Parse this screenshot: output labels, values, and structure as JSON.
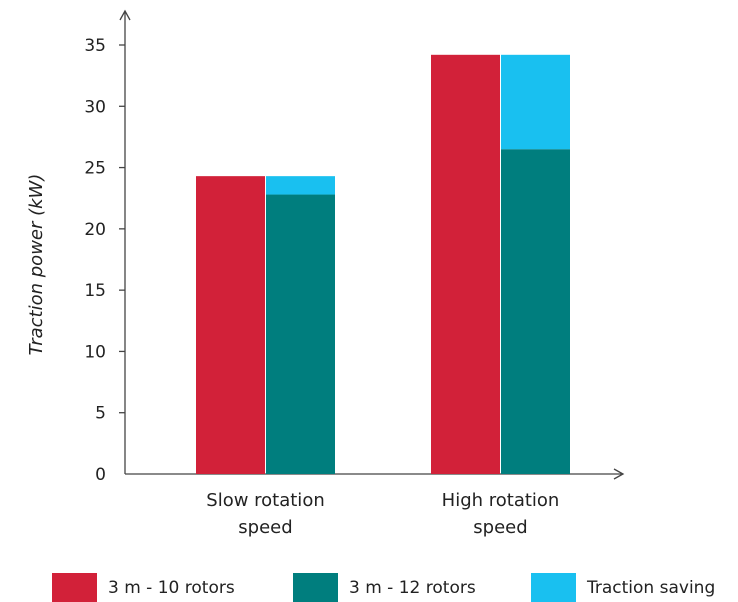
{
  "chart_data": {
    "type": "bar",
    "stacked_mode": "grouped-with-stacked-second-bar",
    "title": "",
    "xlabel": "",
    "ylabel": "Traction power (kW)",
    "ylim": [
      0,
      35
    ],
    "yticks": [
      0,
      5,
      10,
      15,
      20,
      25,
      30,
      35
    ],
    "grid": false,
    "legend_position": "bottom",
    "categories": [
      [
        "Slow rotation",
        "speed"
      ],
      [
        "High rotation",
        "speed"
      ]
    ],
    "series": [
      {
        "name": "3 m - 10 rotors",
        "values": [
          24.3,
          34.2
        ],
        "color": "#d22139"
      },
      {
        "name": "3 m - 12 rotors",
        "values": [
          22.8,
          26.5
        ],
        "color": "#007e7e"
      },
      {
        "name": "Traction saving",
        "values": [
          1.5,
          7.7
        ],
        "color": "#19c0f0",
        "stacked_on": "3 m - 12 rotors"
      }
    ]
  }
}
